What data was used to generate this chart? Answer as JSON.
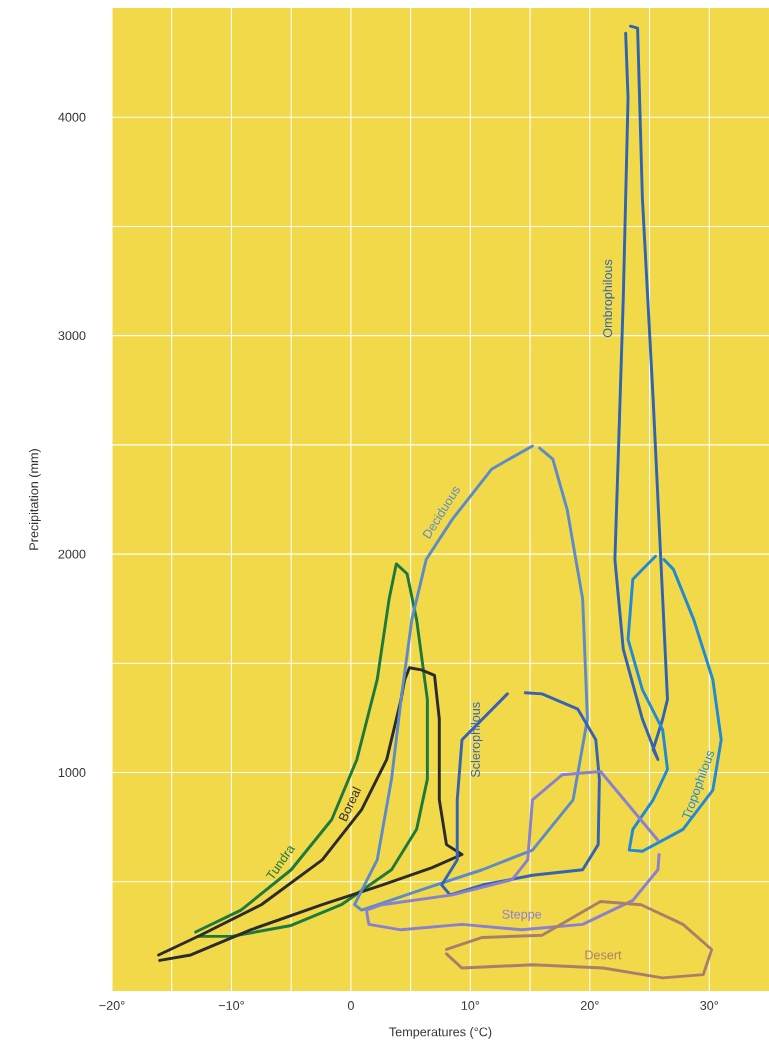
{
  "chart_data": {
    "type": "line",
    "xlabel": "Temperatures (°C)",
    "ylabel": "Precipitation (mm)",
    "xlim": [
      -20,
      35
    ],
    "ylim": [
      0,
      4500
    ],
    "grid": true,
    "xticks": [
      {
        "value": -20,
        "label": "−20°"
      },
      {
        "value": -15,
        "label": null
      },
      {
        "value": -10,
        "label": "−10°"
      },
      {
        "value": -5,
        "label": null
      },
      {
        "value": 0,
        "label": "0"
      },
      {
        "value": 5,
        "label": null
      },
      {
        "value": 10,
        "label": "10°"
      },
      {
        "value": 15,
        "label": null
      },
      {
        "value": 20,
        "label": "20°"
      },
      {
        "value": 25,
        "label": null
      },
      {
        "value": 30,
        "label": "30°"
      }
    ],
    "yticks": [
      {
        "value": 500,
        "label": null
      },
      1000,
      {
        "value": 1500,
        "label": null
      },
      2000,
      {
        "value": 2500,
        "label": null
      },
      3000,
      {
        "value": 3500,
        "label": null
      },
      4000
    ],
    "series": [
      {
        "name": "Tundra",
        "color": "#1e7a3c",
        "x": [
          -13,
          -9.2,
          -5,
          -1.6,
          0.5,
          2.2,
          3.2,
          3.8,
          4.7,
          5.5,
          6.4,
          6.4,
          5.5,
          3.4,
          -0.8,
          -5,
          -10,
          -12.8
        ],
        "values": [
          270,
          370,
          555,
          785,
          1060,
          1425,
          1795,
          1955,
          1910,
          1700,
          1335,
          970,
          740,
          555,
          395,
          300,
          250,
          250
        ]
      },
      {
        "name": "Boreal",
        "color": "#2b2b2b",
        "x": [
          -16.1,
          -12.6,
          -7.5,
          -2.4,
          0.9,
          3.0,
          4.2,
          4.5,
          4.9,
          5.9,
          7.0,
          7.4,
          7.4,
          8.0,
          9.3,
          6.8,
          2.6,
          -2.4,
          -8.4,
          -13.4,
          -16
        ],
        "values": [
          165,
          255,
          395,
          600,
          830,
          1060,
          1335,
          1425,
          1480,
          1470,
          1445,
          1245,
          875,
          670,
          625,
          565,
          485,
          395,
          280,
          165,
          140
        ]
      },
      {
        "name": "Deciduous",
        "color": "#5b8cc8",
        "x": [
          15.2,
          11.8,
          8.5,
          6.3,
          5.1,
          4.2,
          3.4,
          2.2,
          0.3,
          0.9,
          6.0,
          11,
          15.2,
          18.6,
          19.8,
          19.4,
          18.1,
          16.9,
          15.8
        ],
        "values": [
          2495,
          2390,
          2160,
          1975,
          1700,
          1335,
          970,
          600,
          395,
          370,
          465,
          555,
          645,
          875,
          1245,
          1795,
          2205,
          2435,
          2485
        ]
      },
      {
        "name": "Sclerophilous",
        "color": "#3563b6",
        "x": [
          13.1,
          9.3,
          8.9,
          8.9,
          7.6,
          8.3,
          11,
          15.2,
          19.4,
          20.7,
          20.8,
          20.5,
          19,
          16,
          14.6
        ],
        "values": [
          1360,
          1150,
          875,
          600,
          485,
          440,
          485,
          530,
          555,
          670,
          970,
          1150,
          1290,
          1360,
          1365
        ]
      },
      {
        "name": "Ombrophilous",
        "color": "#2f63b4",
        "x": [
          23.4,
          24,
          24.4,
          25.3,
          26.1,
          26.5,
          26.1,
          25.3,
          25.7,
          24.4,
          22.8,
          22.1,
          22.4,
          22.8,
          23.2,
          23
        ],
        "values": [
          4417,
          4408,
          3630,
          2710,
          1795,
          1335,
          1245,
          1105,
          1060,
          1245,
          1565,
          1975,
          2480,
          3170,
          4087,
          4385
        ]
      },
      {
        "name": "Tropophilous",
        "color": "#1f8ad6",
        "x": [
          25.5,
          23.6,
          23.2,
          24.4,
          26.1,
          26.5,
          25.3,
          23.6,
          23.3,
          24.4,
          27.8,
          30.3,
          31,
          30.3,
          28.7,
          27,
          26.2
        ],
        "values": [
          1990,
          1885,
          1610,
          1380,
          1195,
          1015,
          875,
          740,
          645,
          640,
          740,
          920,
          1150,
          1425,
          1700,
          1930,
          1975
        ]
      },
      {
        "name": "Steppe",
        "color": "#8a80d0",
        "x": [
          25.7,
          20.9,
          17.7,
          15.2,
          14.8,
          13.5,
          8.5,
          2.6,
          1.3,
          1.5,
          4.2,
          9.3,
          14.3,
          19.4,
          23.6,
          25.7,
          25.8
        ],
        "values": [
          690,
          1005,
          990,
          875,
          600,
          510,
          440,
          395,
          370,
          305,
          280,
          305,
          280,
          305,
          415,
          555,
          625
        ]
      },
      {
        "name": "Desert",
        "color": "#a8806a",
        "x": [
          8,
          11,
          16,
          20.9,
          24.3,
          27.8,
          30.2,
          29.5,
          26.1,
          21.1,
          15.2,
          9.3,
          8
        ],
        "values": [
          190,
          245,
          255,
          410,
          395,
          305,
          190,
          75,
          60,
          105,
          120,
          105,
          170
        ]
      }
    ]
  }
}
